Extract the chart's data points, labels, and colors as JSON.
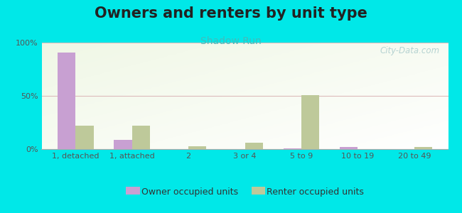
{
  "title": "Owners and renters by unit type",
  "subtitle": "Shadow Run",
  "categories": [
    "1, detached",
    "1, attached",
    "2",
    "3 or 4",
    "5 to 9",
    "10 to 19",
    "20 to 49"
  ],
  "owner_values": [
    91,
    9,
    0,
    0,
    1,
    2,
    0
  ],
  "renter_values": [
    22,
    22,
    3,
    6,
    51,
    0,
    2
  ],
  "owner_color": "#c8a0d2",
  "renter_color": "#bec99a",
  "background_outer": "#00e8e8",
  "ylim": [
    0,
    100
  ],
  "yticks": [
    0,
    50,
    100
  ],
  "ytick_labels": [
    "0%",
    "50%",
    "100%"
  ],
  "bar_width": 0.32,
  "title_fontsize": 15,
  "subtitle_fontsize": 10,
  "legend_fontsize": 9,
  "axis_fontsize": 8,
  "tick_color": "#555555",
  "watermark": "City-Data.com",
  "grid_color": "#ddbbbb",
  "subtitle_color": "#44bbbb",
  "watermark_color": "#aacccc"
}
